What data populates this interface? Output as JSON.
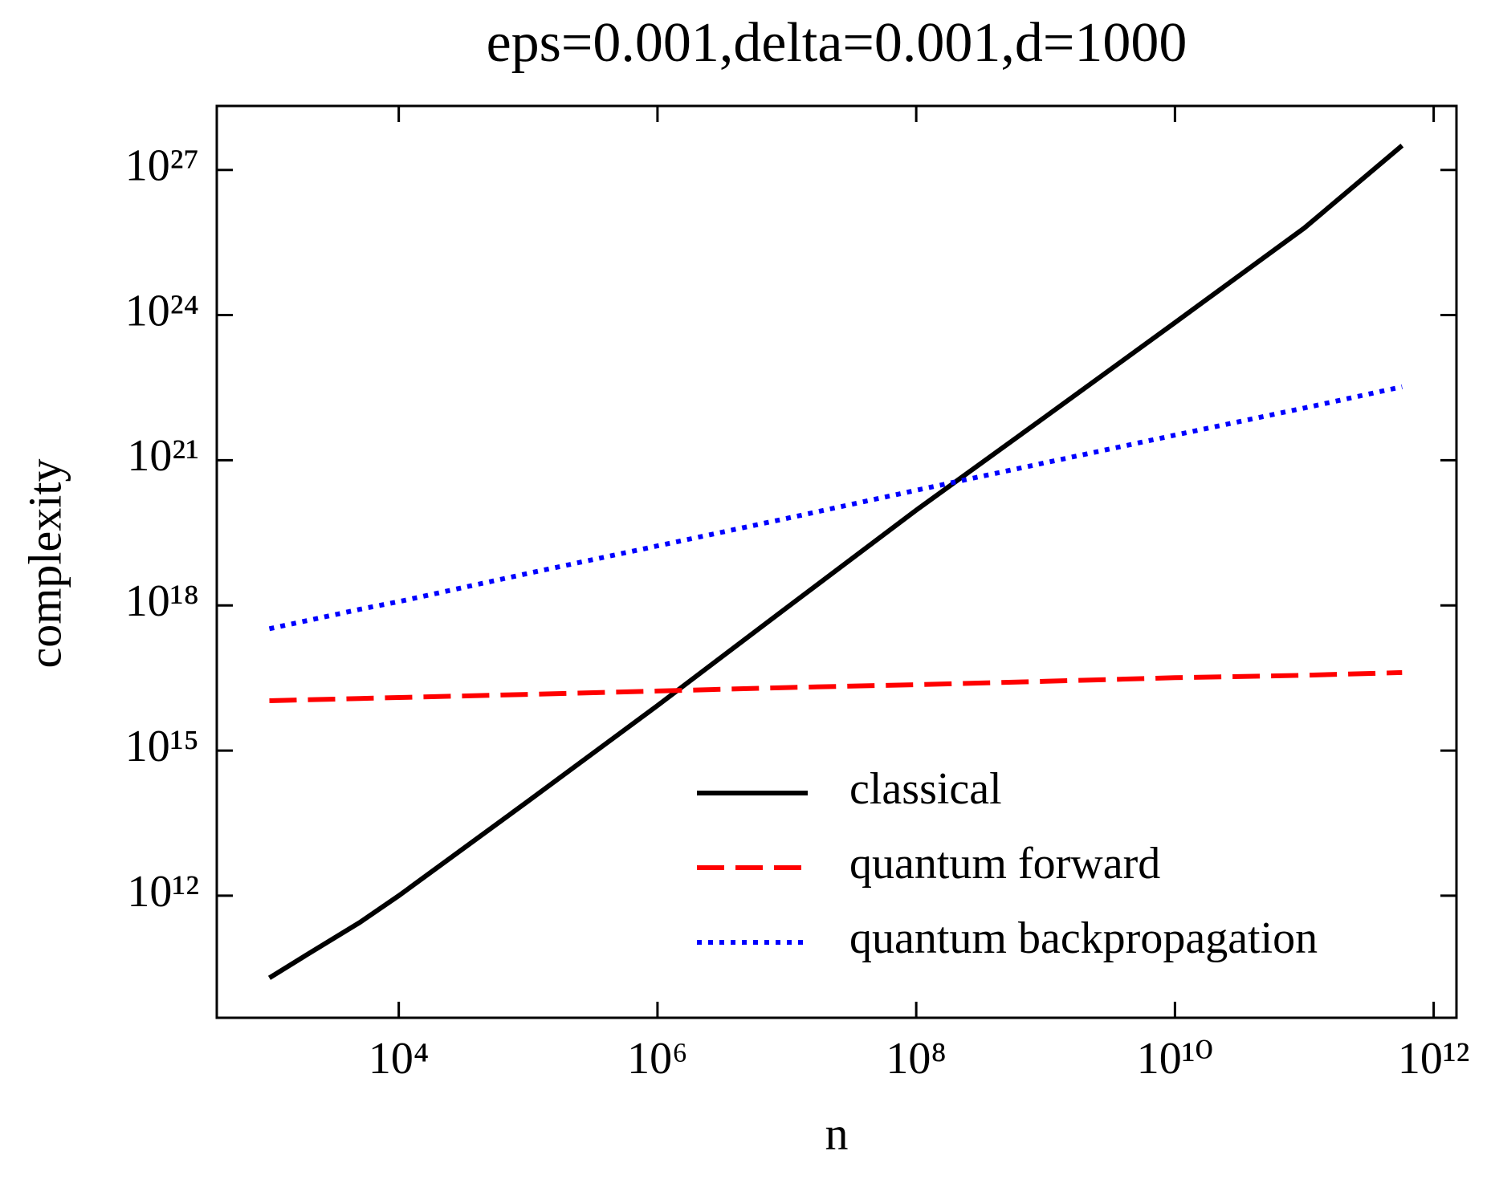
{
  "chart_data": {
    "type": "line",
    "title": "eps=0.001,delta=0.001,d=1000",
    "x_label": "n",
    "y_label": "complexity",
    "x": [
      1000,
      2000,
      5000,
      10000,
      100000,
      1000000,
      10000000,
      100000000,
      1000000000,
      10000000000,
      100000000000,
      570000000000
    ],
    "series": [
      {
        "name": "classical",
        "color": "#000000",
        "style": "solid",
        "values": [
          20000000000.0,
          63000000000.0,
          280000000000.0,
          1000000000000.0,
          90000000000000.0,
          8500000000000000.0,
          9e+17,
          9.3e+19,
          8e+21,
          7e+23,
          6.3e+25,
          3.2e+27
        ]
      },
      {
        "name": "quantum forward",
        "color": "#ff0000",
        "style": "dashed",
        "values": [
          1.07e+16,
          1.12e+16,
          1.19e+16,
          1.25e+16,
          1.45e+16,
          1.7e+16,
          2e+16,
          2.3e+16,
          2.7e+16,
          3.2e+16,
          3.6e+16,
          4.1e+16
        ]
      },
      {
        "name": "quantum backpropagation",
        "color": "#0000ff",
        "style": "dotted",
        "values": [
          3.3e+17,
          4.9e+17,
          8.3e+17,
          1.2e+18,
          4.6e+18,
          1.7e+19,
          6.3e+19,
          2.4e+20,
          8.9e+20,
          3.3e+21,
          1.2e+22,
          3.3e+22
        ]
      }
    ],
    "xscale": "log",
    "yscale": "log",
    "xlim": [
      392,
      1500000000000.0
    ],
    "ylim": [
      3000000000.0,
      2.1e+28
    ],
    "xticks": [
      {
        "value": 10000,
        "label": "10⁴"
      },
      {
        "value": 1000000,
        "label": "10⁶"
      },
      {
        "value": 100000000,
        "label": "10⁸"
      },
      {
        "value": 10000000000,
        "label": "10¹⁰"
      },
      {
        "value": 1000000000000,
        "label": "10¹²"
      }
    ],
    "yticks": [
      {
        "value": 1000000000000.0,
        "label": "10¹²"
      },
      {
        "value": 1000000000000000.0,
        "label": "10¹⁵"
      },
      {
        "value": 1e+18,
        "label": "10¹⁸"
      },
      {
        "value": 1e+21,
        "label": "10²¹"
      },
      {
        "value": 1e+24,
        "label": "10²⁴"
      },
      {
        "value": 1e+27,
        "label": "10²⁷"
      }
    ],
    "legend": "lower right",
    "grid": false
  }
}
